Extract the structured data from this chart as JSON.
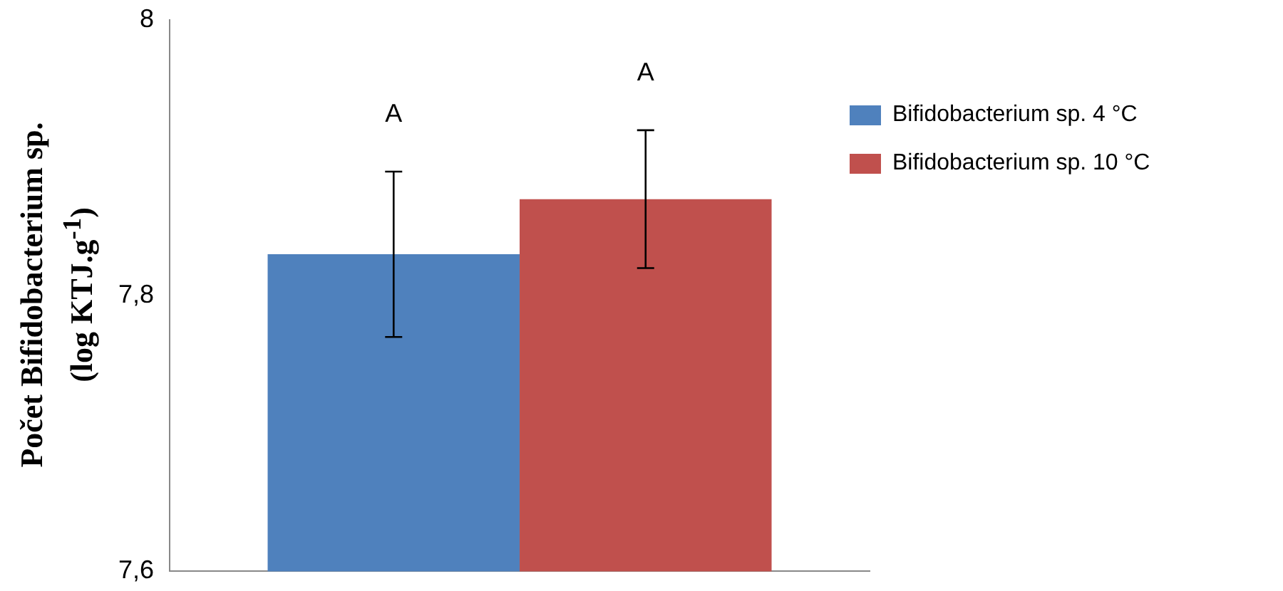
{
  "chart_data": {
    "type": "bar",
    "ylabel": "Počet Bifidobacterium sp.\n(log KTJ.g$^{-1}$)",
    "categories": [
      null
    ],
    "series": [
      {
        "name": "Bifidobacterium sp. 4 °C",
        "color": "#4f81bd",
        "values": [
          7.83
        ],
        "errors": [
          0.06
        ]
      },
      {
        "name": "Bifidobacterium sp. 10 °C",
        "color": "#c0504d",
        "values": [
          7.87
        ],
        "errors": [
          0.05
        ]
      }
    ],
    "annotations": [
      "A",
      "A"
    ],
    "ylim": [
      7.6,
      8
    ],
    "yticks": [
      {
        "value": 7.6,
        "label": "7,6"
      },
      {
        "value": 7.8,
        "label": "7,8"
      },
      {
        "value": 8,
        "label": "8"
      }
    ],
    "grid": false,
    "legend": "right"
  }
}
